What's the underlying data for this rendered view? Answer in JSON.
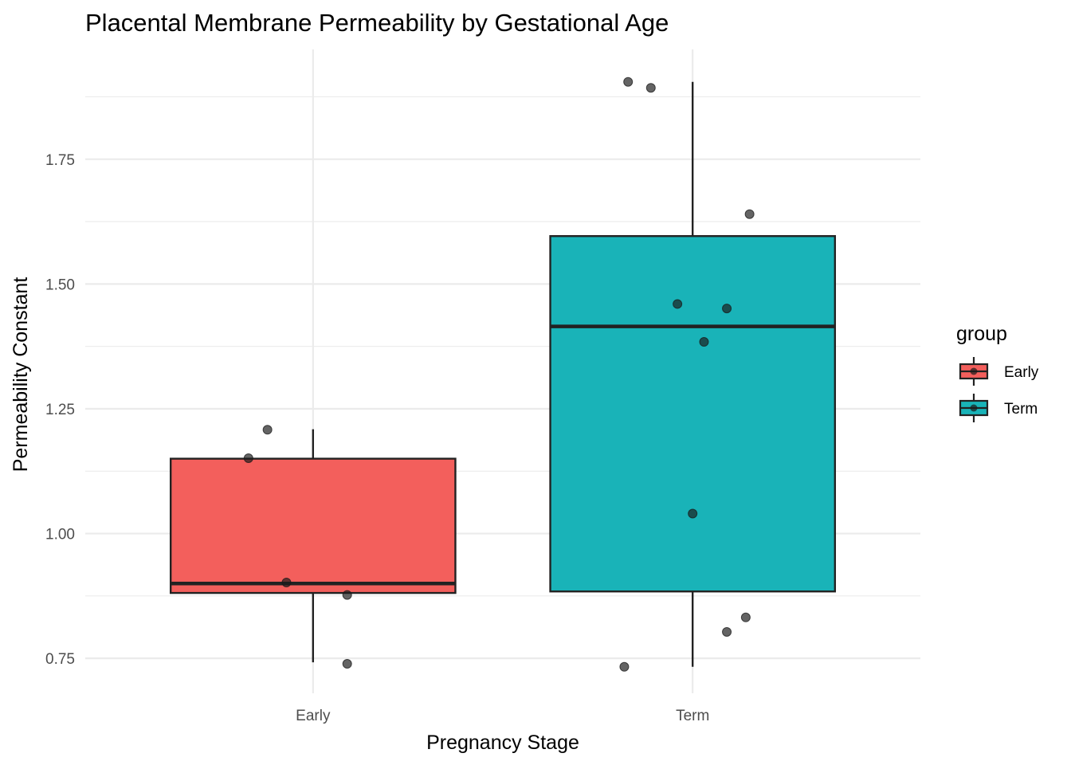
{
  "chart_data": {
    "type": "boxplot",
    "title": "Placental Membrane Permeability by Gestational Age",
    "xlabel": "Pregnancy Stage",
    "ylabel": "Permeability Constant",
    "categories": [
      "Early",
      "Term"
    ],
    "ylim": [
      0.68,
      1.97
    ],
    "yticks": [
      0.75,
      1.0,
      1.25,
      1.5,
      1.75
    ],
    "ytick_labels": [
      "0.75",
      "1.00",
      "1.25",
      "1.50",
      "1.75"
    ],
    "grid": true,
    "legend": {
      "title": "group",
      "position": "right",
      "entries": [
        {
          "label": "Early",
          "color": "#f35f5c"
        },
        {
          "label": "Term",
          "color": "#19b3b8"
        }
      ]
    },
    "series": [
      {
        "name": "Early",
        "color": "#f35f5c",
        "box": {
          "lower_whisker": 0.742,
          "q1": 0.881,
          "median": 0.9,
          "q3": 1.15,
          "upper_whisker": 1.209
        },
        "points": [
          {
            "x": 0.83,
            "y": 1.151
          },
          {
            "x": 0.88,
            "y": 1.208
          },
          {
            "x": 0.93,
            "y": 0.902
          },
          {
            "x": 1.09,
            "y": 0.877
          },
          {
            "x": 1.09,
            "y": 0.739
          }
        ]
      },
      {
        "name": "Term",
        "color": "#19b3b8",
        "box": {
          "lower_whisker": 0.733,
          "q1": 0.884,
          "median": 1.415,
          "q3": 1.596,
          "upper_whisker": 1.905
        },
        "points": [
          {
            "x": 1.83,
            "y": 1.905
          },
          {
            "x": 1.89,
            "y": 1.893
          },
          {
            "x": 2.15,
            "y": 1.64
          },
          {
            "x": 1.96,
            "y": 1.46
          },
          {
            "x": 2.09,
            "y": 1.451
          },
          {
            "x": 2.03,
            "y": 1.384
          },
          {
            "x": 2.0,
            "y": 1.04
          },
          {
            "x": 2.14,
            "y": 0.832
          },
          {
            "x": 2.09,
            "y": 0.803
          },
          {
            "x": 1.82,
            "y": 0.733
          }
        ]
      }
    ]
  }
}
